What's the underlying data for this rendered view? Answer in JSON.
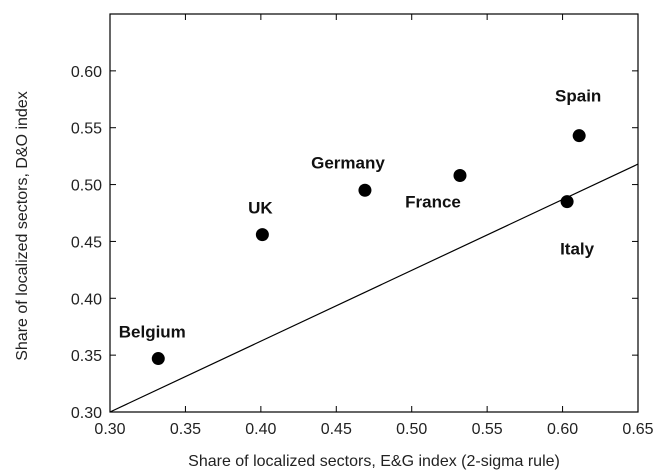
{
  "chart_data": {
    "type": "scatter",
    "title": "",
    "xlabel": "Share of localized sectors, E&G index (2-sigma rule)",
    "ylabel": "Share of localized sectors, D&O index",
    "xlim": [
      0.3,
      0.65
    ],
    "ylim": [
      0.3,
      0.65
    ],
    "x_ticks": [
      "0.30",
      "0.35",
      "0.40",
      "0.45",
      "0.50",
      "0.55",
      "0.60",
      "0.65"
    ],
    "y_ticks": [
      "0.30",
      "0.35",
      "0.40",
      "0.45",
      "0.50",
      "0.55",
      "0.60"
    ],
    "grid": false,
    "points": [
      {
        "label": "Belgium",
        "x": 0.332,
        "y": 0.347
      },
      {
        "label": "UK",
        "x": 0.401,
        "y": 0.456
      },
      {
        "label": "Germany",
        "x": 0.469,
        "y": 0.495
      },
      {
        "label": "France",
        "x": 0.532,
        "y": 0.508
      },
      {
        "label": "Spain",
        "x": 0.611,
        "y": 0.543
      },
      {
        "label": "Italy",
        "x": 0.603,
        "y": 0.485
      }
    ],
    "reference_line": {
      "type": "line",
      "x": [
        0.3,
        0.65
      ],
      "y": [
        0.3,
        0.518
      ]
    },
    "colors": {
      "points": "#000000",
      "line": "#000000",
      "axes": "#000000"
    }
  }
}
